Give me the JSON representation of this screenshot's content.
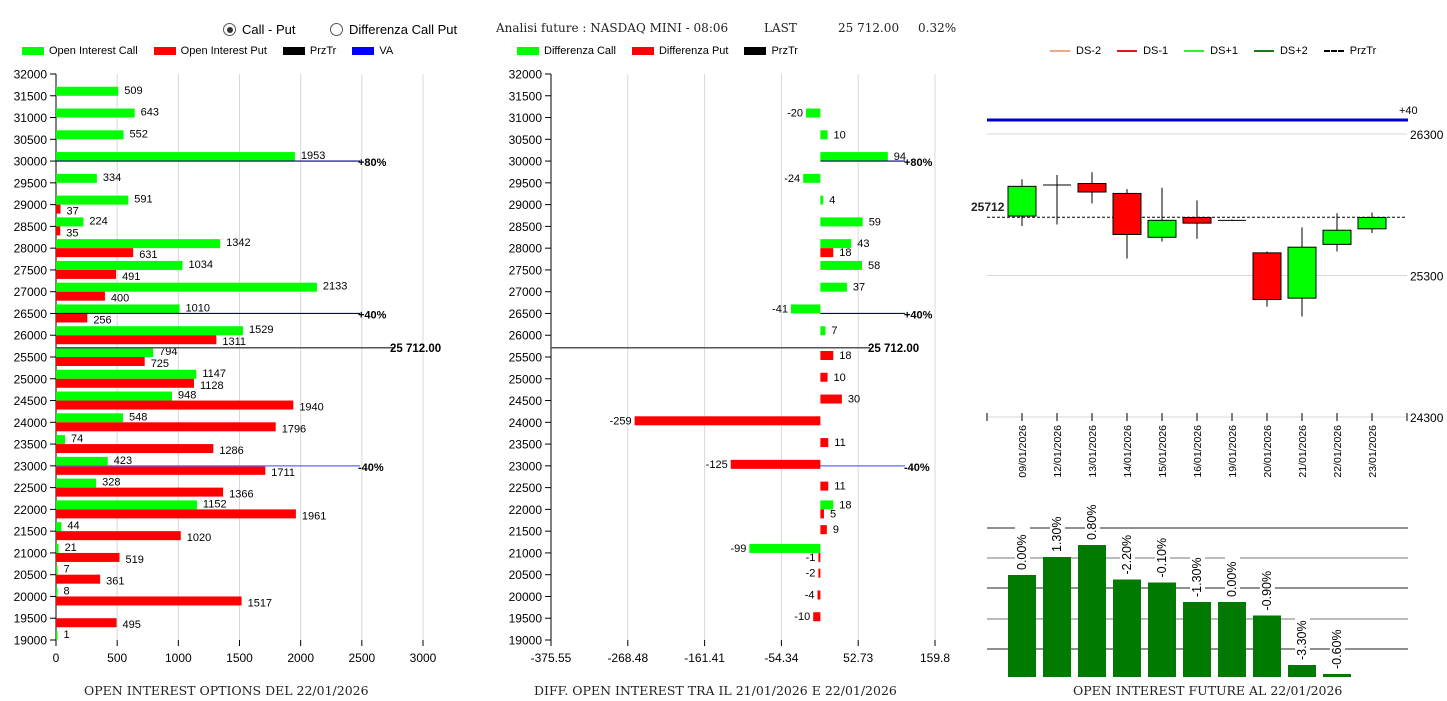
{
  "header": {
    "mode_options": [
      {
        "label": "Call - Put",
        "selected": true
      },
      {
        "label": "Differenza Call Put",
        "selected": false
      }
    ],
    "analysis_title": "Analisi future : NASDAQ MINI - 08:06",
    "last_label": "LAST",
    "last_value": "25 712.00",
    "change_pct": "0.32%"
  },
  "colors": {
    "call": "#00ff00",
    "put": "#ff0000",
    "przTr": "#000000",
    "va": "#0000ff",
    "future_bar": "#007a00"
  },
  "chart_data": [
    {
      "type": "bar",
      "orientation": "horizontal",
      "title": "OPEN INTEREST OPTIONS DEL 22/01/2026",
      "legend": [
        {
          "label": "Open Interest Call",
          "color": "#00ff00"
        },
        {
          "label": "Open Interest Put",
          "color": "#ff0000"
        },
        {
          "label": "PrzTr",
          "color": "#000000"
        },
        {
          "label": "VA",
          "color": "#0000ff"
        }
      ],
      "categories": [
        "32000",
        "31500",
        "31000",
        "30500",
        "30000",
        "29500",
        "29000",
        "28500",
        "28000",
        "27500",
        "27000",
        "26500",
        "26000",
        "25500",
        "25000",
        "24500",
        "24000",
        "23500",
        "23000",
        "22500",
        "22000",
        "21500",
        "21000",
        "20500",
        "20000",
        "19500",
        "19000"
      ],
      "series": [
        {
          "name": "Open Interest Call",
          "values": [
            null,
            509,
            643,
            552,
            1953,
            334,
            591,
            224,
            1342,
            1034,
            2133,
            1010,
            1529,
            794,
            1147,
            948,
            548,
            74,
            423,
            328,
            1152,
            44,
            21,
            7,
            8,
            null,
            1
          ]
        },
        {
          "name": "Open Interest Put",
          "values": [
            null,
            null,
            null,
            null,
            null,
            null,
            37,
            35,
            631,
            491,
            400,
            256,
            1311,
            725,
            1128,
            1940,
            1796,
            1286,
            1711,
            1366,
            1961,
            1020,
            519,
            361,
            1517,
            495,
            null
          ]
        }
      ],
      "xlim": [
        0,
        3000
      ],
      "xticks": [
        "0",
        "500",
        "1000",
        "1500",
        "2000",
        "2500",
        "3000"
      ],
      "annotations": [
        {
          "label": "+80%",
          "strike": 30000,
          "color": "#000080"
        },
        {
          "label": "+40%",
          "strike": 26500,
          "color": "#000080"
        },
        {
          "label": "25 712.00",
          "strike": 25712,
          "color": "#555555"
        },
        {
          "label": "-40%",
          "strike": 23000,
          "color": "#6666ff"
        }
      ],
      "grid": true
    },
    {
      "type": "bar",
      "orientation": "horizontal",
      "title": "DIFF. OPEN INTEREST TRA IL 21/01/2026 E 22/01/2026",
      "legend": [
        {
          "label": "Differenza Call",
          "color": "#00ff00"
        },
        {
          "label": "Differenza Put",
          "color": "#ff0000"
        },
        {
          "label": "PrzTr",
          "color": "#000000"
        }
      ],
      "categories": [
        "32000",
        "31500",
        "31000",
        "30500",
        "30000",
        "29500",
        "29000",
        "28500",
        "28000",
        "27500",
        "27000",
        "26500",
        "26000",
        "25500",
        "25000",
        "24500",
        "24000",
        "23500",
        "23000",
        "22500",
        "22000",
        "21500",
        "21000",
        "20500",
        "20000",
        "19500",
        "19000"
      ],
      "series": [
        {
          "name": "Differenza Call",
          "values": [
            null,
            null,
            -20,
            10,
            94,
            -24,
            4,
            59,
            43,
            58,
            37,
            -41,
            7,
            null,
            null,
            null,
            null,
            null,
            null,
            null,
            18,
            null,
            -99,
            null,
            null,
            null,
            null
          ]
        },
        {
          "name": "Differenza Put",
          "values": [
            null,
            null,
            null,
            null,
            null,
            null,
            null,
            null,
            18,
            null,
            null,
            null,
            null,
            18,
            10,
            30,
            -259,
            11,
            -125,
            11,
            5,
            9,
            -1,
            -2,
            -4,
            -10,
            null
          ]
        }
      ],
      "xlim": [
        -375.55,
        159.8
      ],
      "xticks": [
        "-375.55",
        "-268.48",
        "-161.41",
        "-54.34",
        "52.73",
        "159.8"
      ],
      "annotations": [
        {
          "label": "+80%",
          "strike": 30000,
          "color": "#000080"
        },
        {
          "label": "+40%",
          "strike": 26500,
          "color": "#000080"
        },
        {
          "label": "25 712.00",
          "strike": 25712,
          "color": "#555555"
        },
        {
          "label": "-40%",
          "strike": 23000,
          "color": "#6666ff"
        }
      ],
      "grid": true
    },
    {
      "type": "candlestick",
      "legend": [
        {
          "label": "DS-2",
          "color": "#f4a582"
        },
        {
          "label": "DS-1",
          "color": "#e8141b"
        },
        {
          "label": "DS+1",
          "color": "#33ee33"
        },
        {
          "label": "DS+2",
          "color": "#1a7a1a"
        },
        {
          "label": "PrzTr",
          "color": "#000000",
          "dashed": true
        }
      ],
      "dates": [
        "09/01/2026",
        "12/01/2026",
        "13/01/2026",
        "14/01/2026",
        "15/01/2026",
        "16/01/2026",
        "19/01/2026",
        "20/01/2026",
        "21/01/2026",
        "22/01/2026",
        "23/01/2026"
      ],
      "candles": [
        {
          "open": 25720,
          "close": 25930,
          "high": 25980,
          "low": 25650
        },
        {
          "open": 25940,
          "close": 25940,
          "high": 26010,
          "low": 25660
        },
        {
          "open": 25950,
          "close": 25890,
          "high": 26030,
          "low": 25810
        },
        {
          "open": 25880,
          "close": 25590,
          "high": 25910,
          "low": 25420
        },
        {
          "open": 25570,
          "close": 25690,
          "high": 25920,
          "low": 25540
        },
        {
          "open": 25710,
          "close": 25670,
          "high": 25830,
          "low": 25560
        },
        {
          "open": 25690,
          "close": 25690,
          "high": 25695,
          "low": 25685
        },
        {
          "open": 25460,
          "close": 25130,
          "high": 25470,
          "low": 25080
        },
        {
          "open": 25140,
          "close": 25500,
          "high": 25640,
          "low": 25010
        },
        {
          "open": 25520,
          "close": 25620,
          "high": 25740,
          "low": 25470
        },
        {
          "open": 25630,
          "close": 25710,
          "high": 25745,
          "low": 25600
        }
      ],
      "yticks": [
        "26300",
        "25300",
        "24300"
      ],
      "ylim": [
        24300,
        26400
      ],
      "price_line": {
        "value": 25712,
        "label": "25712"
      },
      "va_line": {
        "label": "+40",
        "value": 26410,
        "color": "#0000cc"
      }
    },
    {
      "type": "bar",
      "title": "OPEN INTEREST FUTURE AL 22/01/2026",
      "categories": [
        "1",
        "2",
        "3",
        "4",
        "5",
        "6",
        "7",
        "8",
        "9",
        "10"
      ],
      "values": [
        68,
        80,
        88,
        65,
        63,
        50,
        50,
        41,
        8,
        2
      ],
      "labels": [
        "0.00%",
        "1.30%",
        "0.80%",
        "-2.20%",
        "-0.10%",
        "-1.30%",
        "0.00%",
        "-0.90%",
        "-3.30%",
        "-0.60%"
      ],
      "ylim": [
        0,
        100
      ],
      "grid": true
    }
  ]
}
